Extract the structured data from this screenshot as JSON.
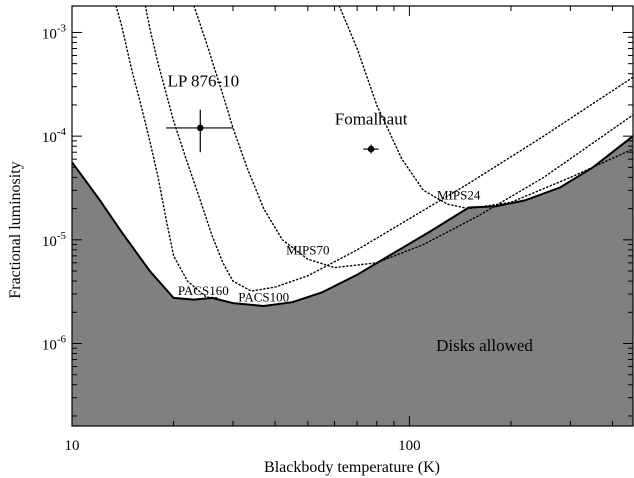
{
  "chart_data": {
    "type": "line",
    "xlabel": "Blackbody temperature (K)",
    "ylabel": "Fractional luminosity",
    "xscale": "log",
    "yscale": "log",
    "xlim": [
      10,
      460
    ],
    "ylim": [
      1.6e-07,
      0.0018
    ],
    "x_tick_labels": [
      {
        "value": 10,
        "label": "10"
      },
      {
        "value": 100,
        "label": "100"
      }
    ],
    "y_tick_labels": [
      {
        "value": 1e-06,
        "base": "10",
        "exp": "-6"
      },
      {
        "value": 1e-05,
        "base": "10",
        "exp": "-5"
      },
      {
        "value": 0.0001,
        "base": "10",
        "exp": "-4"
      },
      {
        "value": 0.001,
        "base": "10",
        "exp": "-3"
      }
    ],
    "region": {
      "label": "Disks allowed",
      "label_at": {
        "x": 120,
        "y": 8.5e-07
      },
      "fill": "#808080",
      "boundary": [
        [
          10,
          5.6e-05
        ],
        [
          12,
          2.5e-05
        ],
        [
          14,
          1.2e-05
        ],
        [
          17,
          5e-06
        ],
        [
          20,
          2.75e-06
        ],
        [
          23,
          2.65e-06
        ],
        [
          26,
          2.75e-06
        ],
        [
          30,
          2.45e-06
        ],
        [
          37,
          2.3e-06
        ],
        [
          45,
          2.5e-06
        ],
        [
          55,
          3.1e-06
        ],
        [
          70,
          4.6e-06
        ],
        [
          90,
          7.5e-06
        ],
        [
          115,
          1.2e-05
        ],
        [
          150,
          2.05e-05
        ],
        [
          180,
          2.1e-05
        ],
        [
          220,
          2.4e-05
        ],
        [
          280,
          3.2e-05
        ],
        [
          350,
          5e-05
        ],
        [
          460,
          0.0001
        ]
      ]
    },
    "series": [
      {
        "name": "PACS160",
        "label_at": {
          "x": 24.5,
          "y": 2.95e-06
        },
        "values": [
          [
            13.5,
            0.0018
          ],
          [
            14,
            0.0012
          ],
          [
            15,
            0.00045
          ],
          [
            16,
            0.0002
          ],
          [
            17,
            9e-05
          ],
          [
            18,
            4e-05
          ],
          [
            19,
            1.6e-05
          ],
          [
            20,
            7e-06
          ],
          [
            22,
            4e-06
          ],
          [
            25,
            2.8e-06
          ],
          [
            27,
            2.75e-06
          ]
        ]
      },
      {
        "name": "PACS100",
        "label_at": {
          "x": 37,
          "y": 2.55e-06
        },
        "values": [
          [
            16.5,
            0.0018
          ],
          [
            17,
            0.0011
          ],
          [
            18,
            0.0005
          ],
          [
            20,
            0.00014
          ],
          [
            22,
            5.5e-05
          ],
          [
            24,
            2.4e-05
          ],
          [
            26,
            1.1e-05
          ],
          [
            28,
            6e-06
          ],
          [
            30,
            4e-06
          ],
          [
            34,
            3.2e-06
          ],
          [
            40,
            3.5e-06
          ],
          [
            50,
            4.5e-06
          ],
          [
            70,
            8e-06
          ],
          [
            100,
            1.6e-05
          ],
          [
            150,
            3.5e-05
          ],
          [
            250,
            0.0001
          ],
          [
            460,
            0.00037
          ]
        ]
      },
      {
        "name": "MIPS70",
        "label_at": {
          "x": 50,
          "y": 7.2e-06
        },
        "values": [
          [
            23,
            0.0018
          ],
          [
            25,
            0.0008
          ],
          [
            28,
            0.00025
          ],
          [
            30,
            0.00012
          ],
          [
            33,
            5e-05
          ],
          [
            37,
            2e-05
          ],
          [
            42,
            1e-05
          ],
          [
            50,
            6.5e-06
          ],
          [
            60,
            5.4e-06
          ],
          [
            80,
            6e-06
          ],
          [
            110,
            9e-06
          ],
          [
            160,
            1.7e-05
          ],
          [
            250,
            4e-05
          ],
          [
            460,
            0.00016
          ]
        ]
      },
      {
        "name": "MIPS24",
        "label_at": {
          "x": 140,
          "y": 2.45e-05
        },
        "values": [
          [
            62,
            0.0018
          ],
          [
            70,
            0.0007
          ],
          [
            80,
            0.0002
          ],
          [
            95,
            6e-05
          ],
          [
            110,
            3e-05
          ],
          [
            130,
            2.2e-05
          ],
          [
            150,
            2e-05
          ],
          [
            200,
            2.3e-05
          ],
          [
            300,
            4e-05
          ],
          [
            460,
            7.5e-05
          ]
        ]
      }
    ],
    "points": [
      {
        "name": "LP 876-10",
        "x": 24,
        "y": 0.00012,
        "xerr": [
          19,
          30
        ],
        "yerr": [
          7e-05,
          0.00018
        ],
        "label_at": {
          "x": 24.5,
          "y": 0.0003
        }
      },
      {
        "name": "Fomalhaut",
        "x": 77,
        "y": 7.5e-05,
        "xerr": [
          73,
          81
        ],
        "yerr": [
          6.8e-05,
          8.3e-05
        ],
        "label_at": {
          "x": 77,
          "y": 0.00013
        }
      }
    ]
  }
}
